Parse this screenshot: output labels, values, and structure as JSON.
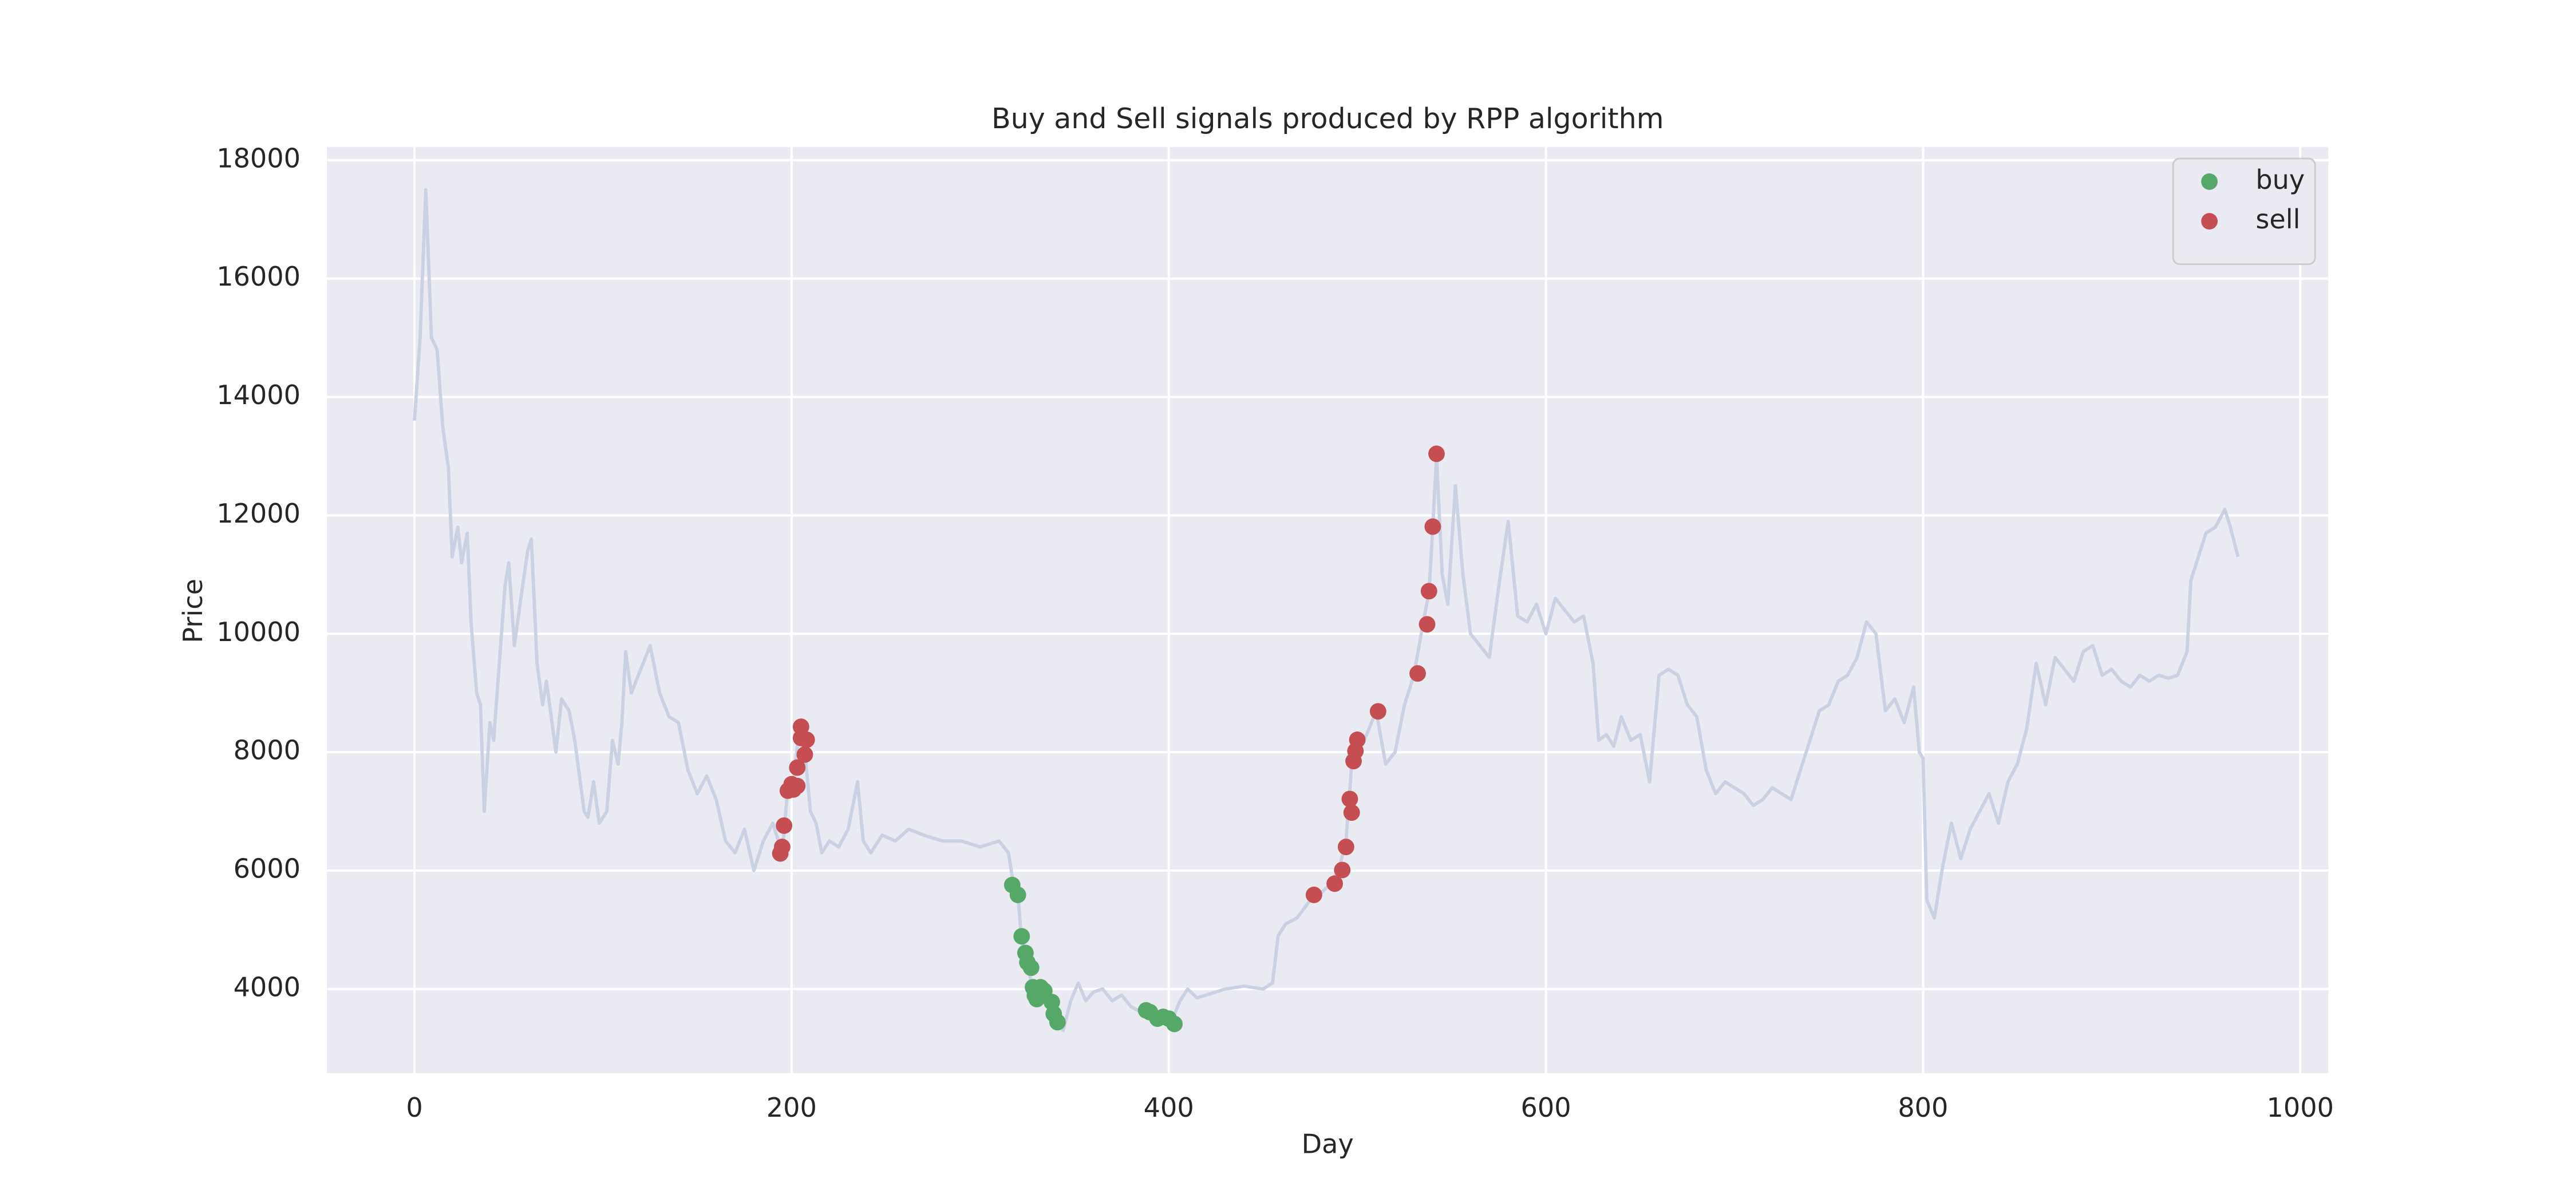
{
  "chart_data": {
    "type": "line",
    "title": "Buy and Sell signals produced by RPP algorithm",
    "xlabel": "Day",
    "ylabel": "Price",
    "xlim": [
      -46.4,
      1014.9
    ],
    "ylim": [
      2578,
      18223
    ],
    "xticks": [
      0,
      200,
      400,
      600,
      800,
      1000
    ],
    "yticks": [
      4000,
      6000,
      8000,
      10000,
      12000,
      14000,
      16000,
      18000
    ],
    "grid": true,
    "legend": "upper right",
    "series": [
      {
        "type": "line",
        "color": "#c9d1e2",
        "x": [
          0,
          3,
          6,
          9,
          12,
          15,
          18,
          20,
          23,
          25,
          28,
          30,
          33,
          35,
          37,
          40,
          42,
          45,
          48,
          50,
          53,
          56,
          60,
          62,
          65,
          68,
          70,
          75,
          78,
          82,
          85,
          90,
          92,
          95,
          98,
          102,
          105,
          108,
          110,
          112,
          115,
          120,
          125,
          130,
          135,
          140,
          145,
          150,
          155,
          160,
          165,
          170,
          175,
          180,
          185,
          190,
          195,
          198,
          201,
          204,
          207,
          210,
          213,
          216,
          220,
          225,
          230,
          235,
          238,
          242,
          248,
          255,
          262,
          270,
          280,
          290,
          300,
          310,
          315,
          318,
          320,
          322,
          325,
          328,
          332,
          336,
          340,
          344,
          348,
          352,
          356,
          360,
          365,
          370,
          375,
          380,
          386,
          392,
          398,
          402,
          406,
          410,
          415,
          420,
          430,
          440,
          450,
          455,
          458,
          462,
          468,
          475,
          480,
          485,
          490,
          494,
          497,
          500,
          505,
          510,
          515,
          520,
          525,
          530,
          535,
          538,
          540,
          542,
          545,
          548,
          552,
          556,
          560,
          565,
          570,
          575,
          580,
          585,
          590,
          595,
          600,
          605,
          610,
          615,
          620,
          625,
          628,
          632,
          636,
          640,
          645,
          650,
          655,
          660,
          665,
          670,
          675,
          680,
          685,
          690,
          695,
          700,
          705,
          710,
          715,
          720,
          725,
          730,
          735,
          740,
          745,
          750,
          755,
          760,
          765,
          770,
          775,
          780,
          785,
          790,
          795,
          798,
          800,
          802,
          806,
          810,
          815,
          820,
          825,
          830,
          835,
          840,
          845,
          850,
          855,
          860,
          865,
          870,
          875,
          880,
          885,
          890,
          895,
          900,
          905,
          910,
          915,
          920,
          925,
          930,
          935,
          940,
          942,
          946,
          950,
          955,
          960,
          963,
          967
        ],
        "values": [
          13600,
          15000,
          17500,
          15000,
          14800,
          13500,
          12800,
          11300,
          11800,
          11200,
          11700,
          10200,
          9000,
          8800,
          7000,
          8500,
          8200,
          9500,
          10800,
          11200,
          9800,
          10500,
          11400,
          11600,
          9500,
          8800,
          9200,
          8000,
          8900,
          8700,
          8200,
          7000,
          6900,
          7500,
          6800,
          7000,
          8200,
          7800,
          8500,
          9700,
          9000,
          9400,
          9800,
          9000,
          8600,
          8500,
          7700,
          7300,
          7600,
          7200,
          6500,
          6300,
          6700,
          6000,
          6500,
          6800,
          6300,
          7400,
          7500,
          8400,
          8000,
          7000,
          6800,
          6300,
          6500,
          6400,
          6700,
          7500,
          6500,
          6300,
          6600,
          6500,
          6700,
          6600,
          6500,
          6500,
          6400,
          6500,
          6300,
          5700,
          5600,
          4800,
          4500,
          3900,
          4000,
          3700,
          3500,
          3300,
          3800,
          4100,
          3800,
          3950,
          4000,
          3800,
          3900,
          3700,
          3600,
          3500,
          3450,
          3500,
          3800,
          4000,
          3850,
          3900,
          4000,
          4050,
          4000,
          4100,
          4900,
          5100,
          5200,
          5500,
          5600,
          5750,
          6000,
          6500,
          7800,
          8000,
          8300,
          8700,
          7800,
          8000,
          8800,
          9300,
          10200,
          10700,
          11800,
          13000,
          11000,
          10500,
          12500,
          11000,
          10000,
          9800,
          9600,
          10800,
          11900,
          10300,
          10200,
          10500,
          10000,
          10600,
          10400,
          10200,
          10300,
          9500,
          8200,
          8300,
          8100,
          8600,
          8200,
          8300,
          7500,
          9300,
          9400,
          9300,
          8800,
          8600,
          7700,
          7300,
          7500,
          7400,
          7300,
          7100,
          7200,
          7400,
          7300,
          7200,
          7700,
          8200,
          8700,
          8800,
          9200,
          9300,
          9600,
          10200,
          10000,
          8700,
          8900,
          8500,
          9100,
          8000,
          7900,
          5500,
          5200,
          6000,
          6800,
          6200,
          6700,
          7000,
          7300,
          6800,
          7500,
          7800,
          8400,
          9500,
          8800,
          9600,
          9400,
          9200,
          9700,
          9800,
          9300,
          9400,
          9200,
          9100,
          9300,
          9200,
          9300,
          9250,
          9300,
          9700,
          10900,
          11300,
          11700,
          11800,
          12100,
          11800,
          11300
        ]
      },
      {
        "type": "scatter",
        "name": "buy",
        "color": "#55a868",
        "x": [
          317,
          320,
          322,
          324,
          325,
          327,
          328,
          329,
          330,
          332,
          334,
          338,
          339,
          341,
          388,
          390,
          394,
          397,
          400,
          403
        ],
        "values": [
          5757,
          5590,
          4890,
          4610,
          4450,
          4360,
          4030,
          3890,
          3830,
          4030,
          3970,
          3780,
          3580,
          3440,
          3640,
          3610,
          3500,
          3530,
          3500,
          3410
        ]
      },
      {
        "type": "scatter",
        "name": "sell",
        "color": "#c44e52",
        "x": [
          194,
          195,
          196,
          198,
          200,
          201,
          203,
          203,
          205,
          205,
          207,
          208,
          477,
          488,
          492,
          494,
          496,
          497,
          498,
          499,
          500,
          511,
          532,
          537,
          538,
          540,
          542
        ],
        "values": [
          6290,
          6400,
          6760,
          7350,
          7460,
          7370,
          7430,
          7740,
          8430,
          8240,
          7960,
          8210,
          5590,
          5780,
          6010,
          6400,
          7210,
          6980,
          7850,
          8020,
          8210,
          8690,
          9330,
          10160,
          10720,
          11810,
          13040
        ]
      }
    ]
  }
}
